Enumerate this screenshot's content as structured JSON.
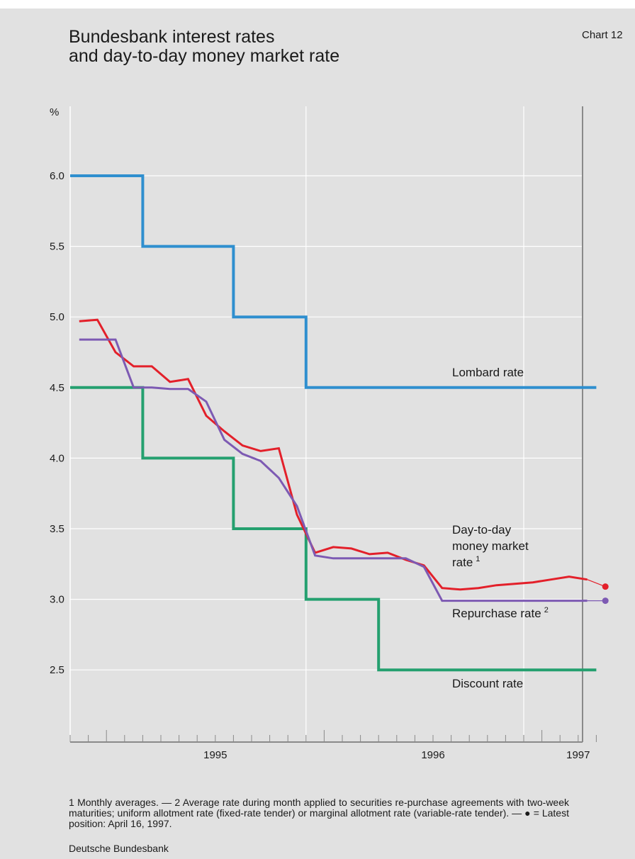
{
  "header": {
    "title_line1": "Bundesbank interest rates",
    "title_line2": "and day-to-day money market rate",
    "chart_number": "Chart 12"
  },
  "footnote": "1 Monthly averages. — 2 Average rate during month applied to securities re-purchase agreements with two-week maturities; uniform allotment rate (fixed-rate tender) or marginal allotment rate (variable-rate tender). — ● = Latest position: April 16, 1997.",
  "source": "Deutsche Bundesbank",
  "colors": {
    "lombard": "#2f8fcf",
    "discount": "#24a06f",
    "money_market": "#e3202a",
    "repurchase": "#7d5ab3",
    "gridline": "#ffffff",
    "background": "#e1e1e1"
  },
  "chart_data": {
    "type": "line",
    "ylabel": "%",
    "ylim": [
      2.0,
      6.5
    ],
    "yticks": [
      "2.5",
      "3.0",
      "3.5",
      "4.0",
      "4.5",
      "5.0",
      "5.5",
      "6.0"
    ],
    "ytick_values": [
      2.5,
      3.0,
      3.5,
      4.0,
      4.5,
      5.0,
      5.5,
      6.0
    ],
    "xlim": [
      "1994-11",
      "1997-05"
    ],
    "year_labels": [
      "1995",
      "1996",
      "1997"
    ],
    "grid": true,
    "series": [
      {
        "name": "Lombard rate",
        "style": "step",
        "points": [
          [
            "1994-11",
            6.0
          ],
          [
            "1995-03",
            6.0
          ],
          [
            "1995-03",
            5.5
          ],
          [
            "1995-08",
            5.5
          ],
          [
            "1995-08",
            5.0
          ],
          [
            "1995-12",
            5.0
          ],
          [
            "1995-12",
            4.5
          ],
          [
            "1997-04",
            4.5
          ]
        ]
      },
      {
        "name": "Discount rate",
        "style": "step",
        "points": [
          [
            "1994-11",
            4.5
          ],
          [
            "1995-03",
            4.5
          ],
          [
            "1995-03",
            4.0
          ],
          [
            "1995-08",
            4.0
          ],
          [
            "1995-08",
            3.5
          ],
          [
            "1995-12",
            3.5
          ],
          [
            "1995-12",
            3.0
          ],
          [
            "1996-04",
            3.0
          ],
          [
            "1996-04",
            2.5
          ],
          [
            "1997-04",
            2.5
          ]
        ]
      },
      {
        "name": "Day-to-day money market rate 1",
        "style": "line",
        "x": [
          "1994-11",
          "1994-12",
          "1995-01",
          "1995-02",
          "1995-03",
          "1995-04",
          "1995-05",
          "1995-06",
          "1995-07",
          "1995-08",
          "1995-09",
          "1995-10",
          "1995-11",
          "1995-12",
          "1996-01",
          "1996-02",
          "1996-03",
          "1996-04",
          "1996-05",
          "1996-06",
          "1996-07",
          "1996-08",
          "1996-09",
          "1996-10",
          "1996-11",
          "1996-12",
          "1997-01",
          "1997-02",
          "1997-03"
        ],
        "values": [
          4.97,
          4.98,
          4.75,
          4.65,
          4.65,
          4.54,
          4.56,
          4.3,
          4.19,
          4.09,
          4.05,
          4.07,
          3.6,
          3.33,
          3.37,
          3.36,
          3.32,
          3.33,
          3.28,
          3.24,
          3.08,
          3.07,
          3.08,
          3.1,
          3.11,
          3.12,
          3.14,
          3.16,
          3.14
        ],
        "latest": {
          "date": "1997-04-16",
          "value": 3.09
        }
      },
      {
        "name": "Repurchase rate 2",
        "style": "line",
        "x": [
          "1994-11",
          "1994-12",
          "1995-01",
          "1995-02",
          "1995-03",
          "1995-04",
          "1995-05",
          "1995-06",
          "1995-07",
          "1995-08",
          "1995-09",
          "1995-10",
          "1995-11",
          "1995-12",
          "1996-01",
          "1996-02",
          "1996-03",
          "1996-04",
          "1996-05",
          "1996-06",
          "1996-07",
          "1996-08",
          "1996-09",
          "1996-10",
          "1996-11",
          "1996-12",
          "1997-01",
          "1997-02",
          "1997-03"
        ],
        "values": [
          4.84,
          4.84,
          4.84,
          4.5,
          4.5,
          4.49,
          4.49,
          4.4,
          4.13,
          4.03,
          3.98,
          3.86,
          3.66,
          3.31,
          3.29,
          3.29,
          3.29,
          3.29,
          3.29,
          3.23,
          2.99,
          2.99,
          2.99,
          2.99,
          2.99,
          2.99,
          2.99,
          2.99,
          2.99
        ],
        "latest": {
          "date": "1997-04-16",
          "value": 2.99
        }
      }
    ],
    "annotations": {
      "lombard_label": "Lombard rate",
      "discount_label": "Discount rate",
      "money_market_label_1": "Day-to-day",
      "money_market_label_2": "money market",
      "money_market_label_3": "rate",
      "money_market_sup": "1",
      "repurchase_label": "Repurchase rate",
      "repurchase_sup": "2"
    }
  }
}
